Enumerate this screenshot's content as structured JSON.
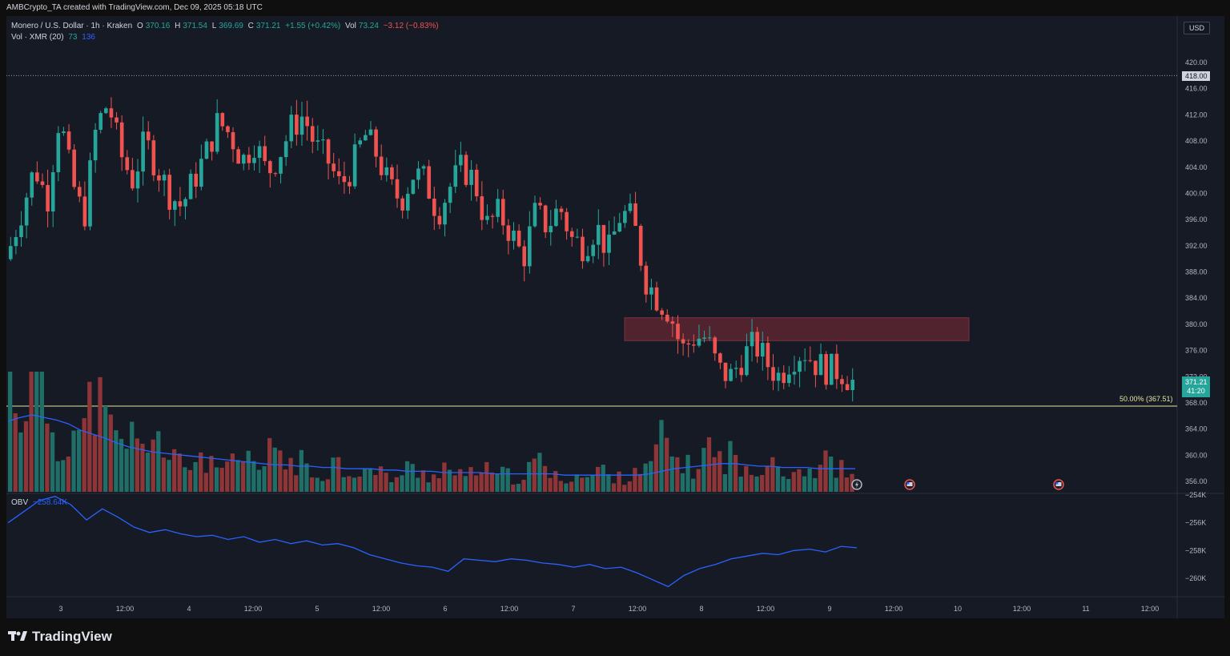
{
  "attribution": "AMBCrypto_TA created with TradingView.com, Dec 09, 2025 05:18 UTC",
  "legend": {
    "symbol": "Monero / U.S. Dollar · 1h · Kraken",
    "o_label": "O",
    "o": "370.16",
    "h_label": "H",
    "h": "371.54",
    "l_label": "L",
    "l": "369.69",
    "c_label": "C",
    "c": "371.21",
    "change": "+1.55 (+0.42%)",
    "vol_label": "Vol",
    "vol": "73.24",
    "vol_change": "−3.12 (−0.83%)",
    "volume_indicator": "Vol · XMR (20)",
    "volume_value": "73",
    "volume_ma": "136",
    "obv_label": "OBV",
    "obv_value": "−258.64K"
  },
  "currency": "USD",
  "last_price": "371.21",
  "countdown": "41:20",
  "marked_level": "418.00",
  "fib_label": "50.00% (367.51)",
  "brand": "TradingView",
  "colors": {
    "up": "#26a69a",
    "down": "#ef5350",
    "volume_up": "#1f6f68",
    "volume_down": "#8e3538",
    "volume_ma": "#2962ff",
    "obv": "#2962ff",
    "fib_line": "#e8e4a0",
    "resistance_zone": "#5a2630"
  },
  "icons": [
    "lightning-icon",
    "us-flag-icon",
    "us-flag-icon"
  ],
  "chart_data": {
    "type": "candlestick",
    "y_axis_ticks": [
      "420.00",
      "416.00",
      "412.00",
      "408.00",
      "404.00",
      "400.00",
      "396.00",
      "392.00",
      "388.00",
      "384.00",
      "380.00",
      "376.00",
      "372.00",
      "368.00",
      "364.00",
      "360.00",
      "356.00"
    ],
    "x_axis_ticks": [
      "3",
      "12:00",
      "4",
      "12:00",
      "5",
      "12:00",
      "6",
      "12:00",
      "7",
      "12:00",
      "8",
      "12:00",
      "9",
      "12:00",
      "10",
      "12:00",
      "11",
      "12:00"
    ],
    "obv_axis_ticks": [
      "−254K",
      "−256K",
      "−258K",
      "−260K"
    ],
    "ylim": [
      355,
      421
    ],
    "obv_ylim": [
      -261,
      -254
    ],
    "horizontal_levels": [
      418.0,
      367.51
    ],
    "resistance_zone": {
      "low": 377.5,
      "high": 381.0,
      "from_index": 128
    },
    "close_path": [
      392,
      398,
      404,
      399,
      412,
      402,
      396,
      410,
      414,
      406,
      402,
      408,
      404,
      400,
      398,
      402,
      406,
      411,
      409,
      405,
      408,
      403,
      406,
      410,
      412,
      407,
      405,
      401,
      404,
      409,
      406,
      401,
      399,
      403,
      402,
      397,
      401,
      404,
      402,
      395,
      397,
      394,
      390,
      397,
      395,
      398,
      393,
      392,
      395,
      391,
      397,
      396,
      387,
      384,
      382,
      376,
      378,
      378,
      373,
      372,
      375,
      377,
      374,
      372,
      375,
      376,
      374,
      373,
      373,
      371.21
    ],
    "volume_path": [
      90,
      60,
      120,
      70,
      30,
      55,
      40,
      80,
      50,
      35,
      45,
      30,
      60,
      20,
      25,
      20,
      30,
      15,
      22,
      18,
      25,
      15,
      40,
      20,
      25,
      12,
      15,
      25,
      15,
      18,
      15,
      14,
      10,
      18,
      15,
      12,
      20,
      14,
      10,
      22,
      12,
      14,
      10,
      15,
      25,
      12,
      10,
      14,
      10,
      18,
      12,
      10,
      20,
      15,
      40,
      30,
      20,
      18,
      35,
      25,
      30,
      15,
      10,
      40,
      18,
      15,
      20,
      15,
      25,
      18,
      12
    ],
    "volume_ma_path": [
      55,
      58,
      60,
      58,
      56,
      53,
      48,
      45,
      42,
      38,
      35,
      33,
      31,
      30,
      29,
      28,
      27,
      26,
      25,
      24,
      23,
      22,
      21,
      21,
      20,
      20,
      19,
      19,
      18,
      18,
      18,
      17,
      17,
      16,
      16,
      16,
      15,
      15,
      15,
      15,
      14,
      14,
      14,
      14,
      14,
      14,
      13,
      13,
      13,
      13,
      13,
      13,
      13,
      14,
      16,
      18,
      19,
      20,
      21,
      22,
      22,
      21,
      20,
      20,
      19,
      19,
      19,
      18,
      18,
      18,
      18
    ],
    "obv_path": [
      -256.0,
      -255.2,
      -254.4,
      -254.1,
      -254.7,
      -255.8,
      -255.0,
      -255.6,
      -256.3,
      -256.7,
      -256.5,
      -256.8,
      -257.0,
      -256.9,
      -257.2,
      -257.0,
      -257.4,
      -257.2,
      -257.5,
      -257.3,
      -257.6,
      -257.5,
      -257.8,
      -258.3,
      -258.6,
      -258.9,
      -259.1,
      -259.2,
      -259.5,
      -258.6,
      -258.7,
      -258.8,
      -258.6,
      -258.7,
      -258.9,
      -259.0,
      -259.2,
      -259.0,
      -259.3,
      -259.2,
      -259.6,
      -260.1,
      -260.6,
      -259.8,
      -259.3,
      -259.0,
      -258.6,
      -258.4,
      -258.2,
      -258.3,
      -258.0,
      -257.9,
      -258.1,
      -257.7,
      -257.8
    ],
    "candle_count": 160,
    "series": [
      {
        "name": "Monero / U.S. Dollar",
        "indicator": "price"
      },
      {
        "name": "Vol · XMR (20)",
        "indicator": "volume"
      },
      {
        "name": "OBV",
        "indicator": "obv"
      }
    ]
  }
}
